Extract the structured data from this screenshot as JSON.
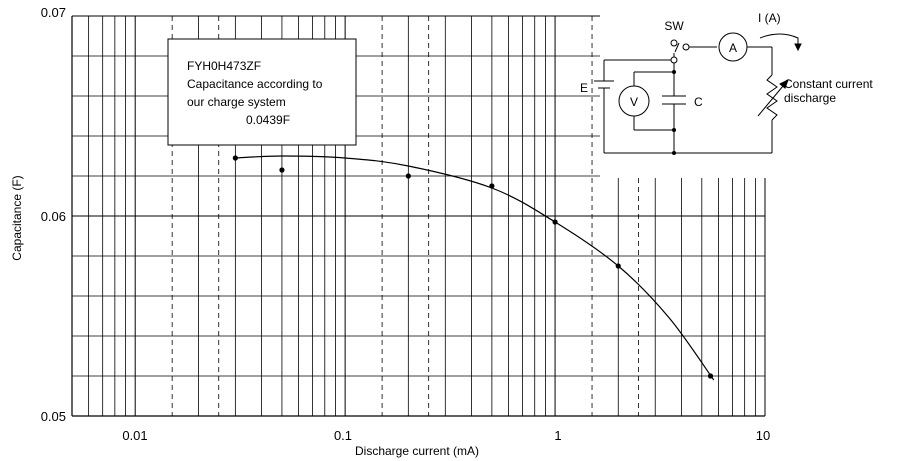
{
  "chart_data": {
    "type": "scatter",
    "x_scale": "log",
    "xlim": [
      0.005,
      10
    ],
    "ylim": [
      0.05,
      0.07
    ],
    "xlabel": "Discharge current (mA)",
    "ylabel": "Capacitance (F)",
    "x_ticks": [
      {
        "value": 0.01,
        "label": "0.01"
      },
      {
        "value": 0.1,
        "label": "0.1"
      },
      {
        "value": 1,
        "label": "1"
      },
      {
        "value": 10,
        "label": "10"
      }
    ],
    "y_ticks": [
      {
        "value": 0.05,
        "label": "0.05"
      },
      {
        "value": 0.06,
        "label": "0.06"
      },
      {
        "value": 0.07,
        "label": "0.07"
      }
    ],
    "points": [
      {
        "x": 0.03,
        "y": 0.0629
      },
      {
        "x": 0.05,
        "y": 0.0623
      },
      {
        "x": 0.2,
        "y": 0.062
      },
      {
        "x": 0.5,
        "y": 0.0615
      },
      {
        "x": 1.0,
        "y": 0.0597
      },
      {
        "x": 2.0,
        "y": 0.0575
      },
      {
        "x": 5.5,
        "y": 0.052
      }
    ],
    "curve": [
      {
        "x": 0.03,
        "y": 0.0629
      },
      {
        "x": 0.05,
        "y": 0.063
      },
      {
        "x": 0.1,
        "y": 0.0629
      },
      {
        "x": 0.2,
        "y": 0.0625
      },
      {
        "x": 0.5,
        "y": 0.0614
      },
      {
        "x": 1.0,
        "y": 0.0597
      },
      {
        "x": 2.0,
        "y": 0.0575
      },
      {
        "x": 3.5,
        "y": 0.0549
      },
      {
        "x": 5.7,
        "y": 0.0518
      }
    ],
    "grid": true
  },
  "annotation": {
    "line1": "FYH0H473ZF",
    "line2": "Capacitance according to",
    "line3": "our charge system",
    "line4": "0.0439F"
  },
  "circuit": {
    "switch_label": "SW",
    "current_label": "I (A)",
    "ammeter_label": "A",
    "voltmeter_label": "V",
    "battery_label": "E",
    "capacitor_label": "C",
    "load_label_line1": "Constant current",
    "load_label_line2": "discharge"
  }
}
